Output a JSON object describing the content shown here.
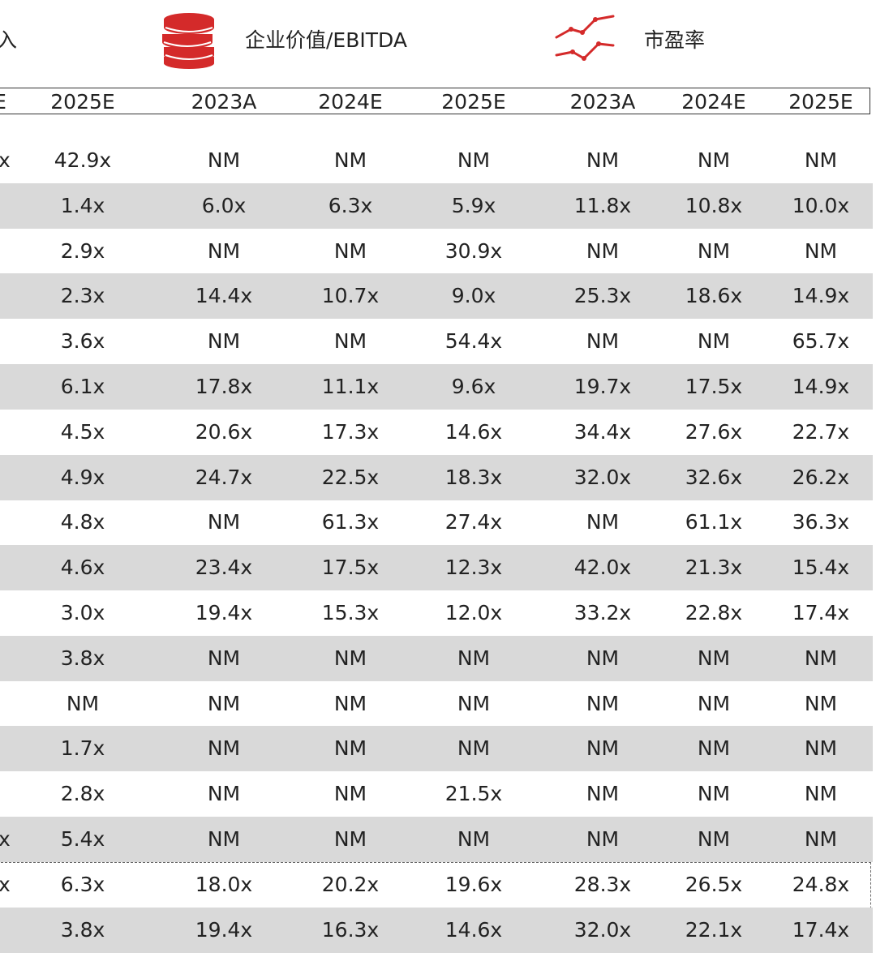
{
  "legend": {
    "cut_label": "入",
    "ev_ebitda_label": "企业价值/EBITDA",
    "pe_label": "市盈率",
    "coin_icon": "stacked-coins-icon",
    "line_icon": "line-trend-icon",
    "accent_color": "#d42a2a"
  },
  "header": {
    "cut": "E",
    "cols": [
      "2025E",
      "2023A",
      "2024E",
      "2025E",
      "2023A",
      "2024E",
      "2025E"
    ]
  },
  "rows": [
    {
      "cut": "x",
      "cells": [
        "42.9x",
        "NM",
        "NM",
        "NM",
        "NM",
        "NM",
        "NM"
      ]
    },
    {
      "cut": "",
      "cells": [
        "1.4x",
        "6.0x",
        "6.3x",
        "5.9x",
        "11.8x",
        "10.8x",
        "10.0x"
      ]
    },
    {
      "cut": "",
      "cells": [
        "2.9x",
        "NM",
        "NM",
        "30.9x",
        "NM",
        "NM",
        "NM"
      ]
    },
    {
      "cut": "",
      "cells": [
        "2.3x",
        "14.4x",
        "10.7x",
        "9.0x",
        "25.3x",
        "18.6x",
        "14.9x"
      ]
    },
    {
      "cut": "",
      "cells": [
        "3.6x",
        "NM",
        "NM",
        "54.4x",
        "NM",
        "NM",
        "65.7x"
      ]
    },
    {
      "cut": "",
      "cells": [
        "6.1x",
        "17.8x",
        "11.1x",
        "9.6x",
        "19.7x",
        "17.5x",
        "14.9x"
      ]
    },
    {
      "cut": "",
      "cells": [
        "4.5x",
        "20.6x",
        "17.3x",
        "14.6x",
        "34.4x",
        "27.6x",
        "22.7x"
      ]
    },
    {
      "cut": "",
      "cells": [
        "4.9x",
        "24.7x",
        "22.5x",
        "18.3x",
        "32.0x",
        "32.6x",
        "26.2x"
      ]
    },
    {
      "cut": "",
      "cells": [
        "4.8x",
        "NM",
        "61.3x",
        "27.4x",
        "NM",
        "61.1x",
        "36.3x"
      ]
    },
    {
      "cut": "",
      "cells": [
        "4.6x",
        "23.4x",
        "17.5x",
        "12.3x",
        "42.0x",
        "21.3x",
        "15.4x"
      ]
    },
    {
      "cut": "",
      "cells": [
        "3.0x",
        "19.4x",
        "15.3x",
        "12.0x",
        "33.2x",
        "22.8x",
        "17.4x"
      ]
    },
    {
      "cut": "",
      "cells": [
        "3.8x",
        "NM",
        "NM",
        "NM",
        "NM",
        "NM",
        "NM"
      ]
    },
    {
      "cut": "",
      "cells": [
        "NM",
        "NM",
        "NM",
        "NM",
        "NM",
        "NM",
        "NM"
      ]
    },
    {
      "cut": "",
      "cells": [
        "1.7x",
        "NM",
        "NM",
        "NM",
        "NM",
        "NM",
        "NM"
      ]
    },
    {
      "cut": "",
      "cells": [
        "2.8x",
        "NM",
        "NM",
        "21.5x",
        "NM",
        "NM",
        "NM"
      ]
    },
    {
      "cut": "x",
      "cells": [
        "5.4x",
        "NM",
        "NM",
        "NM",
        "NM",
        "NM",
        "NM"
      ]
    },
    {
      "cut": "x",
      "cells": [
        "6.3x",
        "18.0x",
        "20.2x",
        "19.6x",
        "28.3x",
        "26.5x",
        "24.8x"
      ]
    },
    {
      "cut": "",
      "cells": [
        "3.8x",
        "19.4x",
        "16.3x",
        "14.6x",
        "32.0x",
        "22.1x",
        "17.4x"
      ]
    }
  ]
}
